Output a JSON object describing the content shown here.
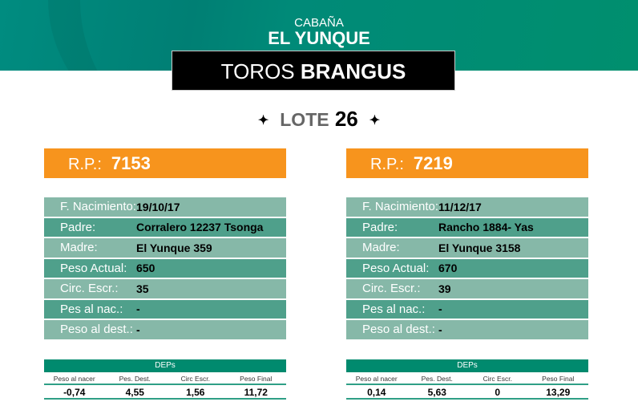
{
  "header": {
    "cabana": "CABAÑA",
    "name": "EL YUNQUE",
    "banner_light": "TOROS",
    "banner_bold": "BRANGUS"
  },
  "lote": {
    "label": "LOTE",
    "number": "26",
    "star": "✦"
  },
  "colors": {
    "orange": "#f7941d",
    "green": "#008a6e",
    "row_light": "#86b8a8",
    "row_dark": "#4fa08b"
  },
  "bulls": [
    {
      "rp_label": "R.P.:",
      "rp": "7153",
      "rows": [
        {
          "k": "F. Nacimiento:",
          "v": "19/10/17"
        },
        {
          "k": "Padre:",
          "v": "Corralero 12237 Tsonga"
        },
        {
          "k": "Madre:",
          "v": "El Yunque 359"
        },
        {
          "k": "Peso Actual:",
          "v": "650"
        },
        {
          "k": "Circ. Escr.:",
          "v": "35"
        },
        {
          "k": "Pes al nac.:",
          "v": "-"
        },
        {
          "k": "Peso al dest.:",
          "v": "-"
        }
      ],
      "deps": {
        "title": "DEPs",
        "labels": [
          "Peso al nacer",
          "Pes. Dest.",
          "Circ Escr.",
          "Peso Final"
        ],
        "values": [
          "-0,74",
          "4,55",
          "1,56",
          "11,72"
        ]
      }
    },
    {
      "rp_label": "R.P.:",
      "rp": "7219",
      "rows": [
        {
          "k": "F. Nacimiento:",
          "v": "11/12/17"
        },
        {
          "k": "Padre:",
          "v": "Rancho 1884- Yas"
        },
        {
          "k": "Madre:",
          "v": "El Yunque 3158"
        },
        {
          "k": "Peso Actual:",
          "v": "670"
        },
        {
          "k": "Circ. Escr.:",
          "v": "39"
        },
        {
          "k": "Pes al nac.:",
          "v": "-"
        },
        {
          "k": "Peso al dest.:",
          "v": "-"
        }
      ],
      "deps": {
        "title": "DEPs",
        "labels": [
          "Peso al nacer",
          "Pes. Dest.",
          "Circ Escr.",
          "Peso Final"
        ],
        "values": [
          "0,14",
          "5,63",
          "0",
          "13,29"
        ]
      }
    }
  ]
}
